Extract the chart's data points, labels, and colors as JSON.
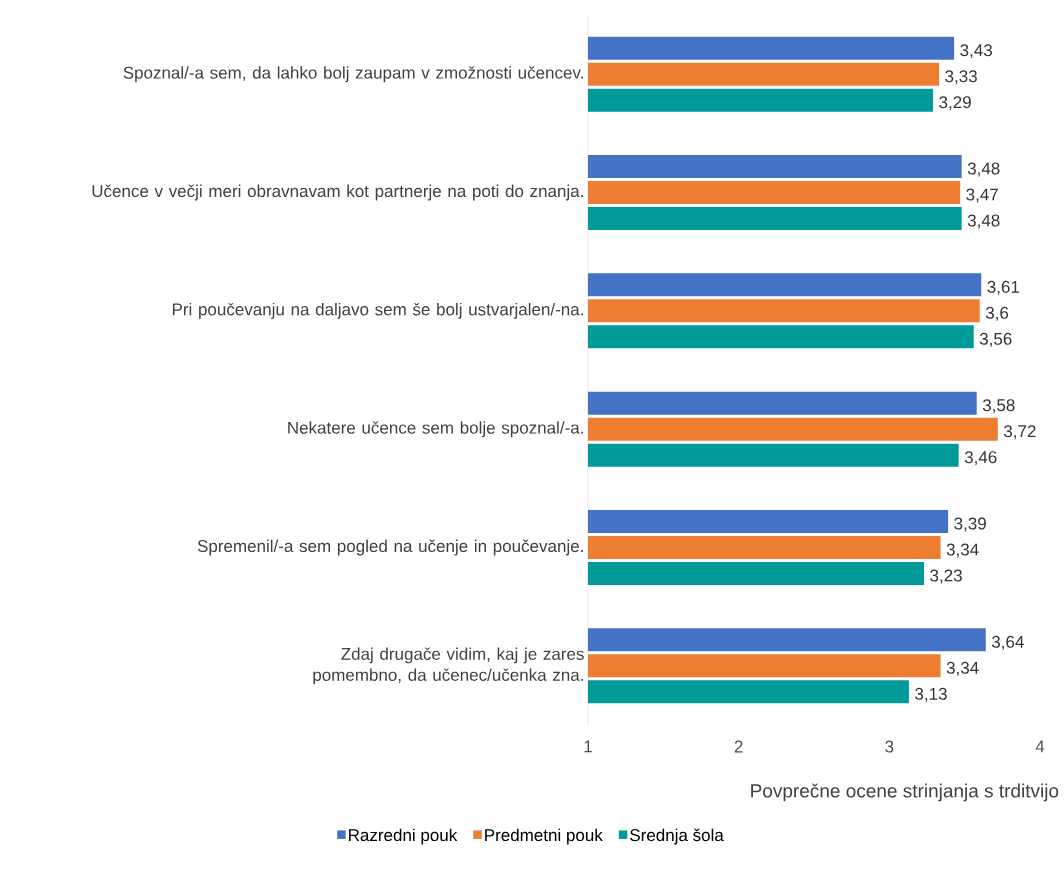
{
  "chart_data": {
    "type": "bar",
    "orientation": "horizontal",
    "categories": [
      "Spoznal/-a sem, da lahko bolj zaupam v zmožnosti učencev.",
      "Učence v večji meri obravnavam kot partnerje na poti do znanja.",
      "Pri poučevanju na daljavo sem še bolj ustvarjalen/-na.",
      "Nekatere učence sem bolje spoznal/-a.",
      "Spremenil/-a sem pogled na učenje in poučevanje.",
      "Zdaj drugače vidim, kaj je zares pomembno, da učenec/učenka zna."
    ],
    "series": [
      {
        "name": "Razredni pouk",
        "color": "#4472c4",
        "values": [
          3.43,
          3.48,
          3.61,
          3.58,
          3.39,
          3.64
        ],
        "value_labels": [
          "3,43",
          "3,48",
          "3,61",
          "3,58",
          "3,39",
          "3,64"
        ]
      },
      {
        "name": "Predmetni pouk",
        "color": "#ed7d31",
        "values": [
          3.33,
          3.47,
          3.6,
          3.72,
          3.34,
          3.34
        ],
        "value_labels": [
          "3,33",
          "3,47",
          "3,6",
          "3,72",
          "3,34",
          "3,34"
        ]
      },
      {
        "name": "Srednja šola",
        "color": "#009a99",
        "values": [
          3.29,
          3.48,
          3.56,
          3.46,
          3.23,
          3.13
        ],
        "value_labels": [
          "3,29",
          "3,48",
          "3,56",
          "3,46",
          "3,23",
          "3,13"
        ]
      }
    ],
    "xlim": [
      1,
      4
    ],
    "xticks": [
      1,
      2,
      3,
      4
    ],
    "xlabel": "Povprečne ocene strinjanja s trditvijo",
    "legend": "bottom",
    "grid": false
  }
}
